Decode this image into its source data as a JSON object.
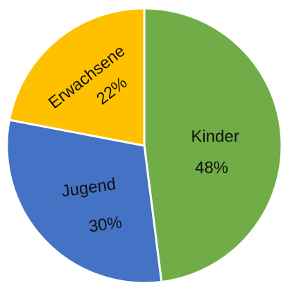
{
  "chart_data": {
    "type": "pie",
    "categories": [
      "Kinder",
      "Jugend",
      "Erwachsene"
    ],
    "values": [
      48,
      30,
      22
    ],
    "value_labels": [
      "48%",
      "30%",
      "22%"
    ],
    "colors": [
      "#70ad47",
      "#4472c4",
      "#ffc000"
    ]
  }
}
